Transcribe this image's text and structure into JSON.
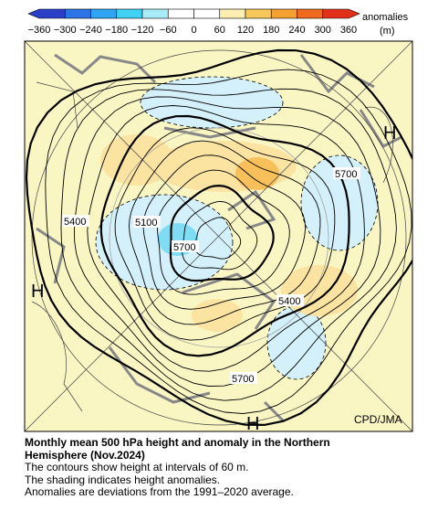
{
  "colorbar": {
    "ticks": [
      "−360",
      "−300",
      "−240",
      "−180",
      "−120",
      "−60",
      "0",
      "60",
      "120",
      "180",
      "240",
      "300",
      "360"
    ],
    "title": "anomalies",
    "unit": "(m)"
  },
  "map": {
    "contour_labels": [
      "5700",
      "5400",
      "5100",
      "5700",
      "5400",
      "5700"
    ],
    "highs": [
      "H",
      "H",
      "H"
    ],
    "credit": "CPD/JMA"
  },
  "caption": {
    "title_lines": [
      "Monthly mean 500 hPa height and anomaly in the Northern",
      "Hemisphere (Nov.2024)"
    ],
    "lines": [
      "The contours show height at intervals of 60 m.",
      "The shading indicates height anomalies.",
      "Anomalies are deviations from the 1991–2020 average."
    ]
  }
}
